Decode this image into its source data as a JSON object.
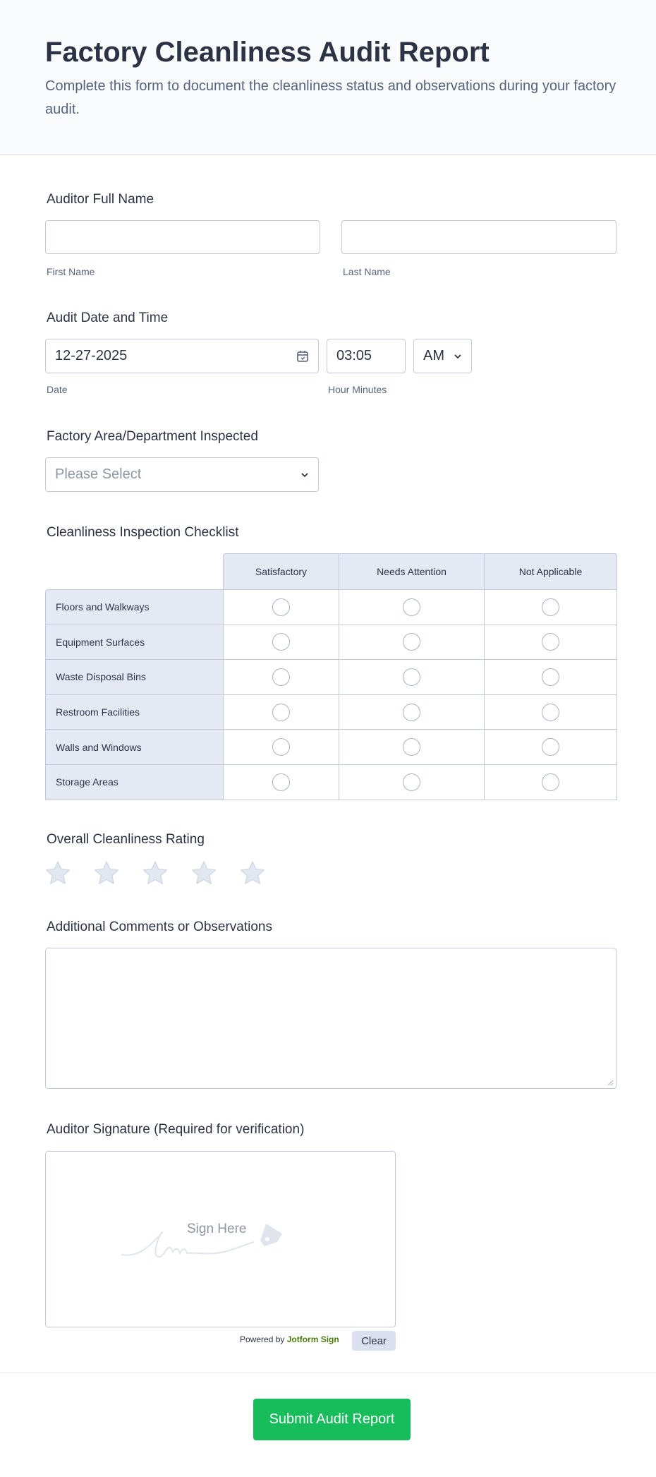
{
  "header": {
    "title": "Factory Cleanliness Audit Report",
    "subtitle": "Complete this form to document the cleanliness status and observations during your factory audit."
  },
  "name": {
    "label": "Auditor Full Name",
    "first_value": "",
    "last_value": "",
    "first_sublabel": "First Name",
    "last_sublabel": "Last Name"
  },
  "datetime": {
    "label": "Audit Date and Time",
    "date_value": "12-27-2025",
    "time_value": "03:05",
    "ampm_value": "AM",
    "date_sublabel": "Date",
    "time_sublabel": "Hour Minutes",
    "calendar_icon": "calendar-icon"
  },
  "area": {
    "label": "Factory Area/Department Inspected",
    "placeholder": "Please Select"
  },
  "checklist": {
    "label": "Cleanliness Inspection Checklist",
    "columns": [
      "Satisfactory",
      "Needs Attention",
      "Not Applicable"
    ],
    "rows": [
      "Floors and Walkways",
      "Equipment Surfaces",
      "Waste Disposal Bins",
      "Restroom Facilities",
      "Walls and Windows",
      "Storage Areas"
    ]
  },
  "rating": {
    "label": "Overall Cleanliness Rating",
    "max": 5,
    "value": 0,
    "star_color": "#e3e7ef"
  },
  "comments": {
    "label": "Additional Comments or Observations",
    "value": ""
  },
  "signature": {
    "label": "Auditor Signature (Required for verification)",
    "placeholder": "Sign Here",
    "powered_by": "Powered by",
    "brand": "Jotform Sign",
    "clear_label": "Clear"
  },
  "submit": {
    "label": "Submit Audit Report",
    "color": "#18bd5b"
  }
}
